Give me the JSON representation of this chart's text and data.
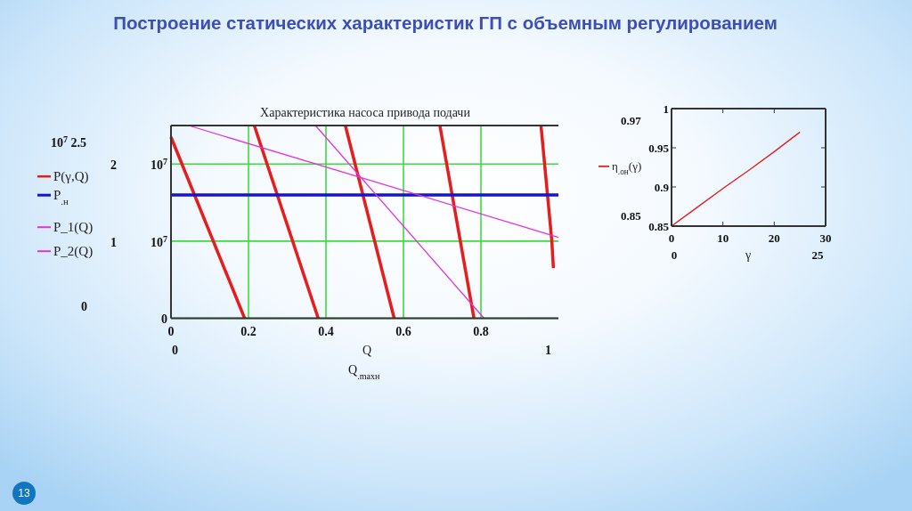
{
  "chart_data": [
    {
      "type": "line",
      "title": "Построение статических характеристик ГП с объемным регулированием",
      "subtitle": "Характеристика насоса привода подачи",
      "xlabel": "Q",
      "xlim": [
        0,
        1
      ],
      "xticks": [
        0,
        0.2,
        0.4,
        0.6,
        0.8
      ],
      "ylim": [
        0,
        2.5
      ],
      "yticks": [
        {
          "value": 0,
          "label": null
        },
        1,
        2
      ],
      "grid": true,
      "legend": "left",
      "series": [
        {
          "name": "P(γ,Q)",
          "color": "#e81c1c",
          "x": [
            0,
            0.19
          ],
          "values": [
            2.35,
            0
          ]
        },
        {
          "color": "#e81c1c",
          "x": [
            0.215,
            0.38
          ],
          "values": [
            2.5,
            0
          ]
        },
        {
          "color": "#e81c1c",
          "x": [
            0.45,
            0.576
          ],
          "values": [
            2.5,
            0
          ]
        },
        {
          "color": "#e81c1c",
          "x": [
            0.694,
            0.782
          ],
          "values": [
            2.5,
            0
          ]
        },
        {
          "color": "#e81c1c",
          "x": [
            0.955,
            0.983,
            0.987
          ],
          "values": [
            2.5,
            1,
            0.65
          ]
        },
        {
          "name": "P$_{.н}$",
          "color": "#1414d2",
          "x": [
            0,
            1
          ],
          "values": [
            1.6,
            1.6
          ]
        },
        {
          "name": "P_1(Q)",
          "color": "#e033e0",
          "x": [
            0.046,
            1
          ],
          "values": [
            2.5,
            1.05
          ]
        },
        {
          "name": "P_2(Q)",
          "color": "#e033e0",
          "x": [
            0.373,
            0.808
          ],
          "values": [
            2.5,
            0
          ]
        }
      ],
      "annotations": [
        "10$^{7}$ 2.5",
        "10$^{7}$",
        "10$^{7}$",
        "0",
        "0",
        "0",
        "1",
        "Q$_{.maxн}$",
        "13"
      ]
    },
    {
      "type": "line",
      "xlabel": "γ",
      "xlim": [
        0,
        30
      ],
      "xticks": [
        0,
        10,
        20,
        30
      ],
      "ylim": [
        0.85,
        1
      ],
      "yticks": [
        0.85,
        0.9,
        0.95,
        1
      ],
      "legend": "left",
      "series": [
        {
          "name": "η$_{.он}$(γ)",
          "color": "#e02020",
          "x": [
            0,
            5,
            10,
            15,
            20,
            25
          ],
          "values": [
            0.85,
            0.874,
            0.898,
            0.921,
            0.945,
            0.97
          ]
        }
      ],
      "annotations": [
        "0.97",
        "0.85",
        "0",
        "25"
      ]
    }
  ]
}
